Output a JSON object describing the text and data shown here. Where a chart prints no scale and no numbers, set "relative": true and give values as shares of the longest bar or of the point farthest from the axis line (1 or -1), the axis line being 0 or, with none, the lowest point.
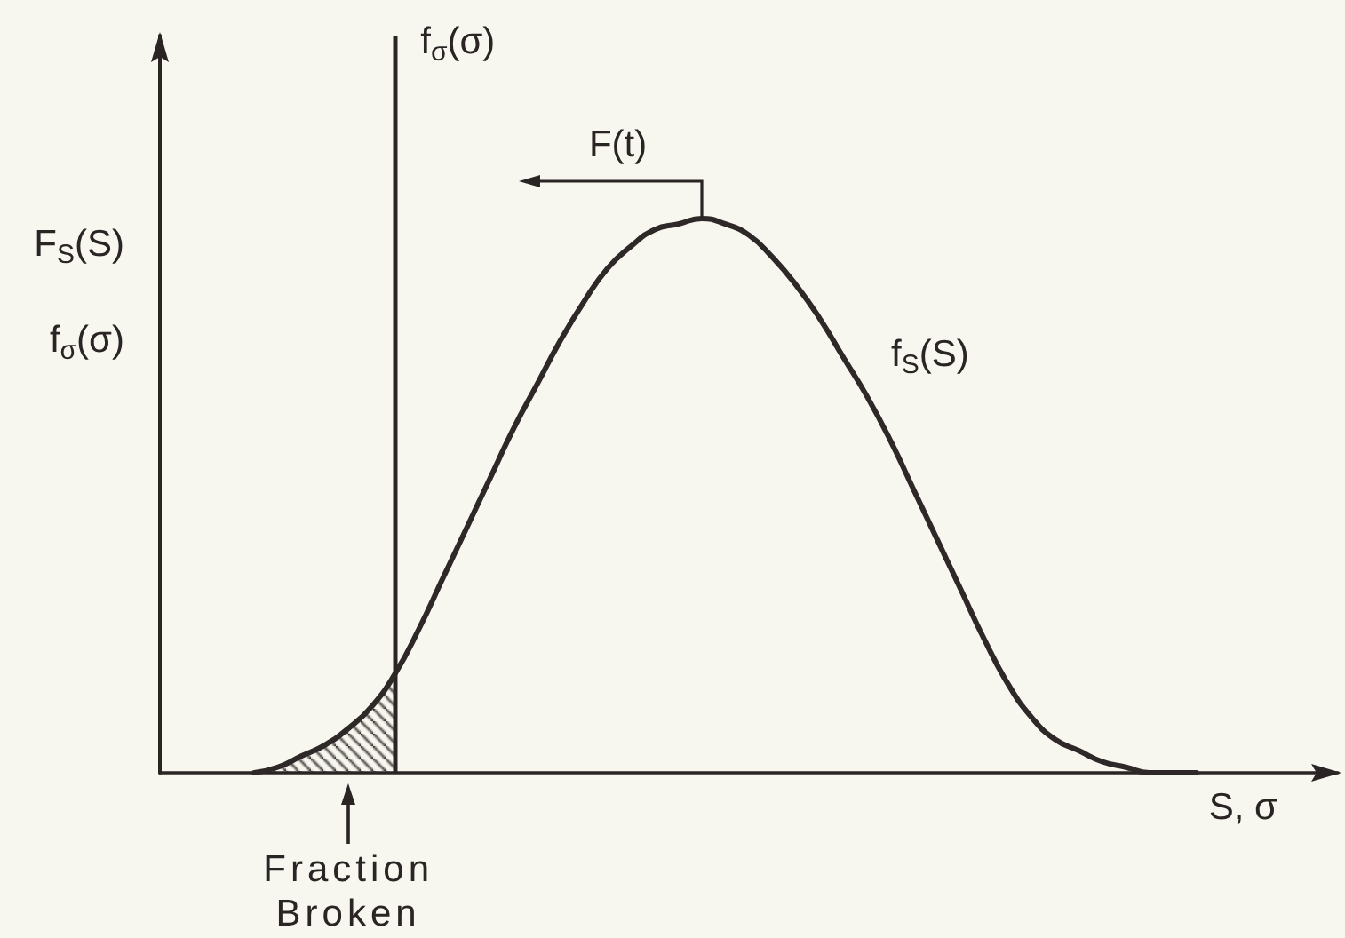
{
  "chart_data": {
    "type": "line",
    "relative": true,
    "marker": "none",
    "xlabel": "S, σ",
    "ylabel": "F$_{S}$(S)\nf$_{σ}$(σ)",
    "categories": [
      null,
      null,
      null,
      null,
      null,
      null,
      null,
      null,
      null,
      null,
      null,
      null,
      null,
      null,
      null,
      null,
      null,
      null,
      null,
      null,
      null,
      null,
      null,
      null,
      null,
      null,
      null,
      null,
      null,
      null,
      null,
      null,
      null,
      null,
      null,
      null,
      null,
      null,
      null,
      null,
      null,
      null,
      null,
      null,
      null,
      null,
      null,
      null,
      null,
      null,
      null
    ],
    "series": [
      {
        "name": "f$_{S}$(S)",
        "color": "#2f2828",
        "values": [
          null,
          null,
          null,
          null,
          0,
          0.01,
          0.03,
          0.05,
          0.08,
          0.12,
          0.18,
          0.26,
          0.35,
          0.44,
          0.53,
          0.62,
          0.7,
          0.78,
          0.85,
          0.91,
          0.95,
          0.98,
          0.99,
          1,
          0.99,
          0.97,
          0.93,
          0.88,
          0.82,
          0.75,
          0.68,
          0.6,
          0.51,
          0.42,
          0.33,
          0.24,
          0.16,
          0.1,
          0.06,
          0.04,
          0.02,
          0.01,
          0,
          0,
          0,
          null,
          null,
          null,
          null,
          null,
          null
        ]
      },
      {
        "type": "area",
        "color": "#2f2828",
        "values": [
          null,
          null,
          null,
          null,
          0,
          0.01,
          0.03,
          0.05,
          0.08,
          0.12,
          0.18,
          null,
          null,
          null,
          null,
          null,
          null,
          null,
          null,
          null,
          null,
          null,
          null,
          null,
          null,
          null,
          null,
          null,
          null,
          null,
          null,
          null,
          null,
          null,
          null,
          null,
          null,
          null,
          null,
          null,
          null,
          null,
          null,
          null,
          null,
          null,
          null,
          null,
          null,
          null,
          null
        ]
      }
    ],
    "annotations": [
      "f$_{σ}$(σ)",
      "F(t)",
      "Fraction Broken"
    ]
  }
}
